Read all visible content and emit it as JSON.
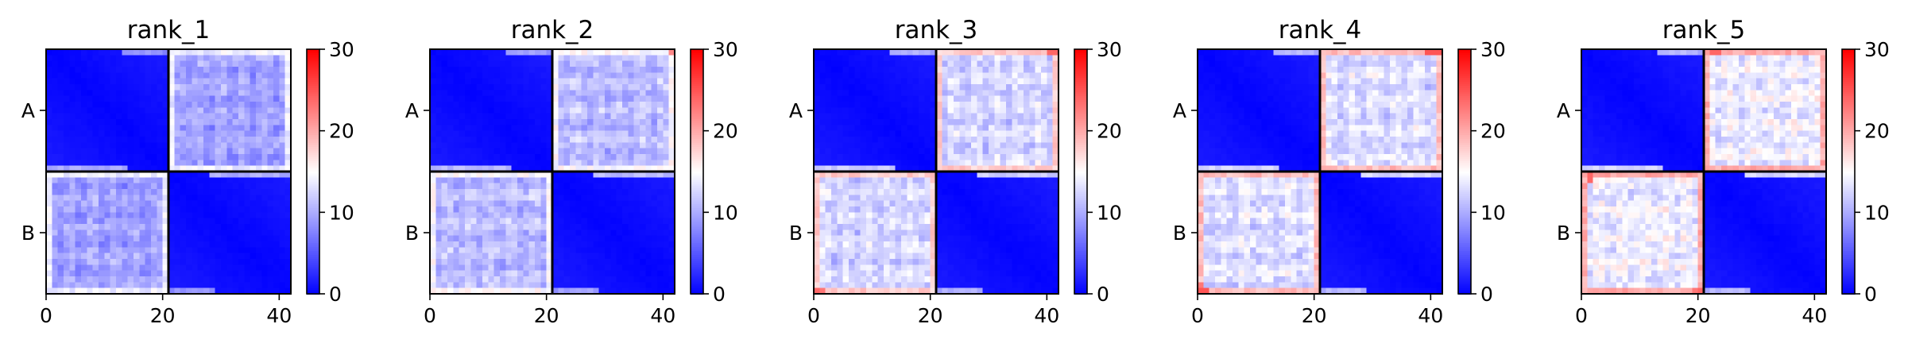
{
  "chart_data": [
    {
      "type": "heatmap",
      "title": "rank_1",
      "ytick_labels": [
        "A",
        "B"
      ],
      "xticks": [
        0,
        20,
        40
      ],
      "xlim": [
        0,
        42
      ],
      "colorbar_ticks": [
        0,
        10,
        20,
        30
      ],
      "vmin": 0,
      "vmax": 30,
      "chain_break": 21,
      "offdiag_level": 9.5,
      "offdiag_spread": 1.6,
      "edge_level": 16.5,
      "boundary_level": 14,
      "boundary_spots": []
    },
    {
      "type": "heatmap",
      "title": "rank_2",
      "ytick_labels": [
        "A",
        "B"
      ],
      "xticks": [
        0,
        20,
        40
      ],
      "xlim": [
        0,
        42
      ],
      "colorbar_ticks": [
        0,
        10,
        20,
        30
      ],
      "vmin": 0,
      "vmax": 30,
      "chain_break": 21,
      "offdiag_level": 11,
      "offdiag_spread": 1.6,
      "edge_level": 18,
      "boundary_level": 15,
      "boundary_spots": [
        [
          0,
          41,
          22
        ]
      ]
    },
    {
      "type": "heatmap",
      "title": "rank_3",
      "ytick_labels": [
        "A",
        "B"
      ],
      "xticks": [
        0,
        20,
        40
      ],
      "xlim": [
        0,
        42
      ],
      "colorbar_ticks": [
        0,
        10,
        20,
        30
      ],
      "vmin": 0,
      "vmax": 30,
      "chain_break": 21,
      "offdiag_level": 12.5,
      "offdiag_spread": 1.8,
      "edge_level": 20,
      "boundary_level": 18,
      "boundary_spots": [
        [
          0,
          40,
          24
        ],
        [
          0,
          41,
          24
        ],
        [
          41,
          0,
          24
        ],
        [
          41,
          1,
          23
        ]
      ]
    },
    {
      "type": "heatmap",
      "title": "rank_4",
      "ytick_labels": [
        "A",
        "B"
      ],
      "xticks": [
        0,
        20,
        40
      ],
      "xlim": [
        0,
        42
      ],
      "colorbar_ticks": [
        0,
        10,
        20,
        30
      ],
      "vmin": 0,
      "vmax": 30,
      "chain_break": 21,
      "offdiag_level": 13,
      "offdiag_spread": 1.8,
      "edge_level": 21,
      "boundary_level": 19,
      "boundary_spots": [
        [
          0,
          39,
          25
        ],
        [
          0,
          40,
          25
        ],
        [
          0,
          41,
          25
        ],
        [
          41,
          0,
          25
        ],
        [
          41,
          1,
          25
        ],
        [
          40,
          0,
          23
        ]
      ]
    },
    {
      "type": "heatmap",
      "title": "rank_5",
      "ytick_labels": [
        "A",
        "B"
      ],
      "xticks": [
        0,
        20,
        40
      ],
      "xlim": [
        0,
        42
      ],
      "colorbar_ticks": [
        0,
        10,
        20,
        30
      ],
      "vmin": 0,
      "vmax": 30,
      "chain_break": 21,
      "offdiag_level": 14,
      "offdiag_spread": 2.0,
      "edge_level": 21,
      "boundary_level": 20,
      "boundary_spots": [
        [
          0,
          22,
          24
        ],
        [
          0,
          23,
          24
        ],
        [
          21,
          1,
          24
        ],
        [
          22,
          1,
          24
        ],
        [
          41,
          20,
          24
        ],
        [
          41,
          19,
          23
        ]
      ]
    }
  ]
}
